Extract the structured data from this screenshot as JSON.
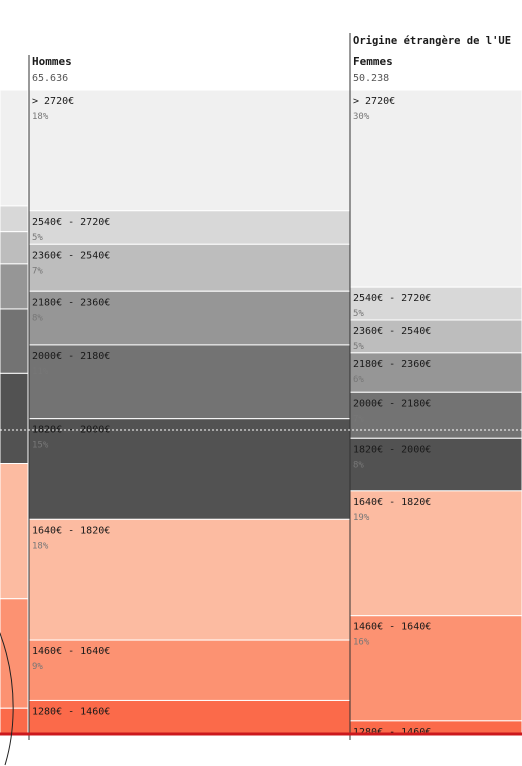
{
  "chart_data": {
    "type": "bar",
    "stacked": true,
    "group_label": "Origine étrangère de l'UE",
    "categories": [
      "> 2720€",
      "2540€ - 2720€",
      "2360€ - 2540€",
      "2180€ - 2360€",
      "2000€ - 2180€",
      "1820€ - 2000€",
      "1640€ - 1820€",
      "1460€ - 1640€",
      "1280€ - 1460€"
    ],
    "colors": [
      "#f0f0f0",
      "#d8d8d8",
      "#bdbdbd",
      "#969696",
      "#737373",
      "#525252",
      "#fcbba1",
      "#fc9272",
      "#fb6a4a"
    ],
    "columns": [
      {
        "name": "Hommes",
        "total": "65.636",
        "values": [
          18,
          5,
          7,
          8,
          11,
          15,
          18,
          9,
          5
        ],
        "value_labels": [
          "18%",
          "5%",
          "7%",
          "8%",
          "11%",
          "15%",
          "18%",
          "9%",
          ""
        ]
      },
      {
        "name": "Femmes",
        "total": "50.238",
        "values": [
          30,
          5,
          5,
          6,
          7,
          8,
          19,
          16,
          2
        ],
        "value_labels": [
          "30%",
          "5%",
          "5%",
          "6%",
          "7%",
          "8%",
          "19%",
          "16%",
          ""
        ]
      }
    ],
    "left_column_partial": {
      "values": [
        18,
        4,
        5,
        7,
        10,
        14,
        21,
        17,
        4
      ],
      "colors": [
        "#f0f0f0",
        "#d8d8d8",
        "#bdbdbd",
        "#969696",
        "#737373",
        "#525252",
        "#fcbba1",
        "#fc9272",
        "#fb6a4a"
      ]
    },
    "grid": false
  }
}
